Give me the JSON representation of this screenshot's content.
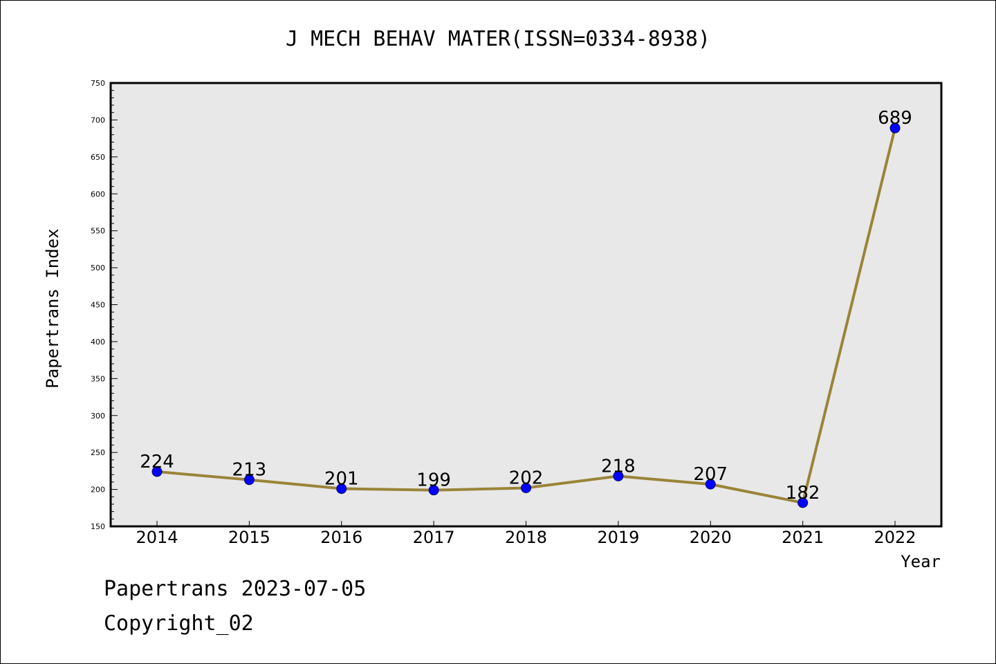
{
  "chart_data": {
    "type": "line",
    "title": "J MECH BEHAV MATER(ISSN=0334-8938)",
    "xlabel": "Year",
    "ylabel": "Papertrans Index",
    "categories": [
      "2014",
      "2015",
      "2016",
      "2017",
      "2018",
      "2019",
      "2020",
      "2021",
      "2022"
    ],
    "values": [
      224,
      213,
      201,
      199,
      202,
      218,
      207,
      182,
      689
    ],
    "ylim": [
      150,
      750
    ],
    "yticks": [
      150,
      200,
      250,
      300,
      350,
      400,
      450,
      500,
      550,
      600,
      650,
      700,
      750
    ],
    "grid": false,
    "legend": "none",
    "colors": {
      "line": "#9a8438",
      "marker": "#0000ff",
      "plot_background": "#e8e8e8"
    }
  },
  "footer": {
    "line1": "Papertrans 2023-07-05",
    "line2": "Copyright_02"
  }
}
